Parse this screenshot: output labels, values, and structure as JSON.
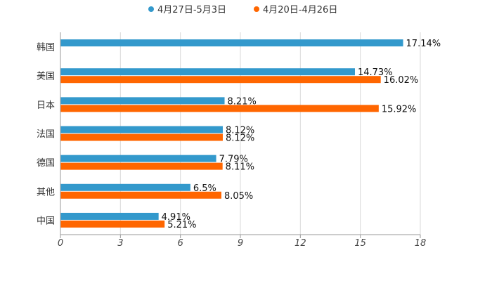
{
  "chart_data": {
    "type": "bar",
    "orientation": "horizontal",
    "categories": [
      "韩国",
      "美国",
      "日本",
      "法国",
      "德国",
      "其他",
      "中国"
    ],
    "series": [
      {
        "name": "4月27日-5月3日",
        "color": "#3399CC",
        "values": [
          17.14,
          14.73,
          8.21,
          8.12,
          7.79,
          6.5,
          4.91
        ],
        "labels": [
          "17.14%",
          "14.73%",
          "8.21%",
          "8.12%",
          "7.79%",
          "6.5%",
          "4.91%"
        ]
      },
      {
        "name": "4月20日-4月26日",
        "color": "#FF6600",
        "values": [
          null,
          16.02,
          15.92,
          8.12,
          8.11,
          8.05,
          5.21
        ],
        "labels": [
          "",
          "16.02%",
          "15.92%",
          "8.12%",
          "8.11%",
          "8.05%",
          "5.21%"
        ]
      }
    ],
    "xlim": [
      0,
      18
    ],
    "xticks": [
      0,
      3,
      6,
      9,
      12,
      15,
      18
    ],
    "xtick_labels": [
      "0",
      "3",
      "6",
      "9",
      "12",
      "15",
      "18"
    ],
    "grid": true,
    "legend_position": "top-center"
  }
}
